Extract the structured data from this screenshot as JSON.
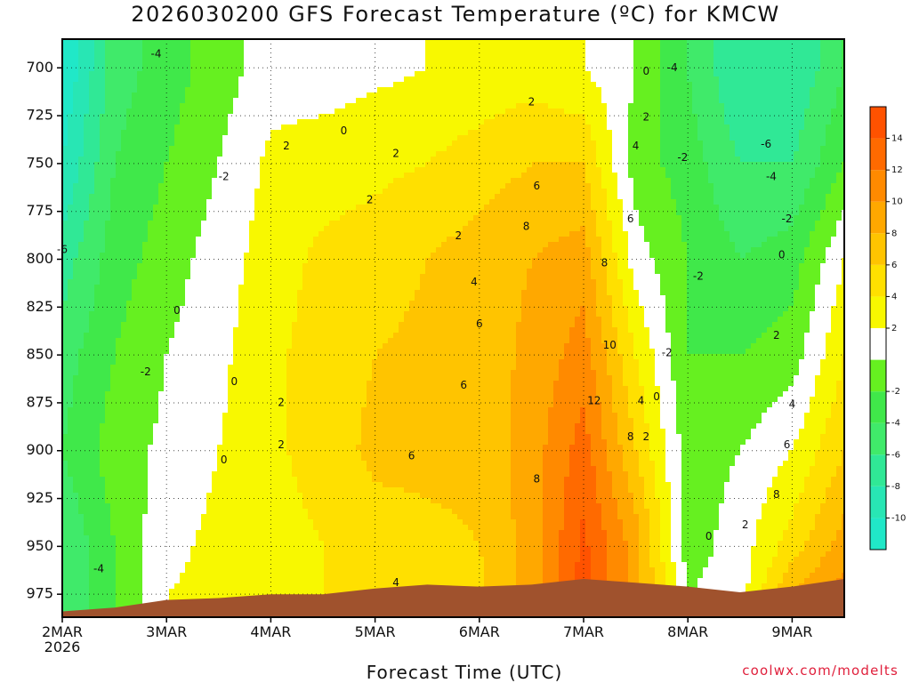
{
  "title": "2026030200 GFS Forecast Temperature (ºC) for KMCW",
  "credit": "coolwx.com/modelts",
  "colors": {
    "c_m12": "#20e8c8",
    "c_m10": "#20e8c8",
    "c_m8": "#30e6a8",
    "c_m6": "#40e880",
    "c_m4": "#40e850",
    "c_m2": "#60f020",
    "c_0": "#ffffff",
    "c_2": "#ffffff",
    "c_4": "#f8f800",
    "c_6": "#ffe000",
    "c_8": "#ffc400",
    "c_10": "#ffa000",
    "c_12": "#ff7a00",
    "c_14": "#ff5200",
    "ground": "#a0522d",
    "zero_line": "#c0206a"
  },
  "chart_data": {
    "type": "heatmap",
    "title": "2026030200 GFS Forecast Temperature (ºC) for KMCW",
    "xlabel": "Forecast Time (UTC)",
    "ylabel": "",
    "x_ticks": [
      "2MAR\n2026",
      "3MAR",
      "4MAR",
      "5MAR",
      "6MAR",
      "7MAR",
      "8MAR",
      "9MAR"
    ],
    "x_tick_days": [
      0,
      1,
      2,
      3,
      4,
      5,
      6,
      7
    ],
    "x_range_days": [
      0,
      7.5
    ],
    "y_ticks": [
      700,
      725,
      750,
      775,
      800,
      825,
      850,
      875,
      900,
      925,
      950,
      975
    ],
    "y_range_hPa": [
      685,
      987
    ],
    "colorbar": {
      "levels": [
        -12,
        -10,
        -8,
        -6,
        -4,
        -2,
        0,
        2,
        4,
        6,
        8,
        10,
        12,
        14,
        16
      ],
      "labels": [
        -10,
        -8,
        -6,
        -4,
        -2,
        2,
        4,
        6,
        8,
        10,
        12,
        14
      ]
    },
    "temperature_profile": {
      "times_days": [
        0.0,
        0.5,
        1.0,
        1.5,
        2.0,
        2.5,
        3.0,
        3.5,
        4.0,
        4.5,
        5.0,
        5.5,
        6.0,
        6.5,
        7.0,
        7.5
      ],
      "levels_hPa": [
        700,
        750,
        800,
        850,
        900,
        950,
        975
      ],
      "temps_C": [
        [
          -12,
          -10,
          -7,
          -5,
          -4,
          -6,
          -6
        ],
        [
          -5,
          -4,
          -3,
          -2,
          -1,
          -2,
          -2
        ],
        [
          -3,
          -2,
          -1,
          0,
          0.5,
          1.5,
          2
        ],
        [
          -1,
          0,
          1,
          1.5,
          2,
          2.5,
          2.5
        ],
        [
          1,
          2.5,
          3,
          3.5,
          3.5,
          3,
          3
        ],
        [
          1,
          3,
          4.5,
          5,
          5,
          4,
          4
        ],
        [
          1.5,
          3.5,
          5,
          6,
          6.5,
          5,
          4.5
        ],
        [
          2,
          4,
          6,
          6.5,
          6.5,
          5.5,
          5
        ],
        [
          2.5,
          5,
          7,
          7,
          6.5,
          6,
          5.5
        ],
        [
          3,
          6,
          8,
          8.5,
          9,
          9,
          9
        ],
        [
          2,
          6,
          9,
          11,
          13,
          14.5,
          15
        ],
        [
          0,
          -1,
          1,
          4,
          6,
          9,
          9
        ],
        [
          -4,
          -3,
          -2,
          -2,
          -1,
          -1,
          0
        ],
        [
          -8,
          -6,
          -4,
          -2,
          0,
          1,
          1
        ],
        [
          -8,
          -6,
          -3,
          -1,
          2,
          5,
          8
        ],
        [
          -4,
          -2,
          2,
          4,
          6,
          9,
          11
        ]
      ],
      "surface_pressure_hPa": [
        984,
        982,
        978,
        977,
        975,
        975,
        972,
        970,
        971,
        970,
        967,
        969,
        971,
        974,
        971,
        967
      ]
    },
    "contour_labels": [
      {
        "text": "-4",
        "t": 0.9,
        "p": 693
      },
      {
        "text": "-2",
        "t": 1.55,
        "p": 757
      },
      {
        "text": "-6",
        "t": 0.0,
        "p": 795
      },
      {
        "text": "-2",
        "t": 0.8,
        "p": 859
      },
      {
        "text": "-4",
        "t": 0.35,
        "p": 962
      },
      {
        "text": "0",
        "t": 2.7,
        "p": 733
      },
      {
        "text": "0",
        "t": 1.1,
        "p": 827
      },
      {
        "text": "0",
        "t": 1.65,
        "p": 864
      },
      {
        "text": "0",
        "t": 1.55,
        "p": 905
      },
      {
        "text": "2",
        "t": 2.15,
        "p": 741
      },
      {
        "text": "2",
        "t": 2.95,
        "p": 769
      },
      {
        "text": "2",
        "t": 3.2,
        "p": 745
      },
      {
        "text": "2",
        "t": 3.8,
        "p": 788
      },
      {
        "text": "2",
        "t": 4.5,
        "p": 718
      },
      {
        "text": "2",
        "t": 2.1,
        "p": 875
      },
      {
        "text": "2",
        "t": 2.1,
        "p": 897
      },
      {
        "text": "4",
        "t": 3.95,
        "p": 812
      },
      {
        "text": "4",
        "t": 5.5,
        "p": 741
      },
      {
        "text": "4",
        "t": 3.2,
        "p": 969
      },
      {
        "text": "6",
        "t": 4.0,
        "p": 834
      },
      {
        "text": "6",
        "t": 3.35,
        "p": 903
      },
      {
        "text": "6",
        "t": 4.55,
        "p": 762
      },
      {
        "text": "6",
        "t": 3.85,
        "p": 866
      },
      {
        "text": "6",
        "t": 5.45,
        "p": 779
      },
      {
        "text": "8",
        "t": 4.45,
        "p": 783
      },
      {
        "text": "8",
        "t": 5.2,
        "p": 802
      },
      {
        "text": "8",
        "t": 4.55,
        "p": 915
      },
      {
        "text": "8",
        "t": 5.45,
        "p": 893
      },
      {
        "text": "10",
        "t": 5.25,
        "p": 845
      },
      {
        "text": "12",
        "t": 5.1,
        "p": 874
      },
      {
        "text": "4",
        "t": 5.55,
        "p": 874
      },
      {
        "text": "2",
        "t": 5.6,
        "p": 893
      },
      {
        "text": "2",
        "t": 5.6,
        "p": 726
      },
      {
        "text": "0",
        "t": 5.6,
        "p": 702
      },
      {
        "text": "0",
        "t": 5.7,
        "p": 872
      },
      {
        "text": "-4",
        "t": 5.85,
        "p": 700
      },
      {
        "text": "-2",
        "t": 5.95,
        "p": 747
      },
      {
        "text": "-2",
        "t": 6.1,
        "p": 809
      },
      {
        "text": "-2",
        "t": 5.8,
        "p": 849
      },
      {
        "text": "-6",
        "t": 6.75,
        "p": 740
      },
      {
        "text": "-4",
        "t": 6.8,
        "p": 757
      },
      {
        "text": "-2",
        "t": 6.95,
        "p": 779
      },
      {
        "text": "0",
        "t": 6.9,
        "p": 798
      },
      {
        "text": "2",
        "t": 6.85,
        "p": 840
      },
      {
        "text": "4",
        "t": 7.0,
        "p": 876
      },
      {
        "text": "6",
        "t": 6.95,
        "p": 897
      },
      {
        "text": "8",
        "t": 6.85,
        "p": 923
      },
      {
        "text": "2",
        "t": 6.55,
        "p": 939
      },
      {
        "text": "0",
        "t": 6.2,
        "p": 945
      }
    ]
  }
}
